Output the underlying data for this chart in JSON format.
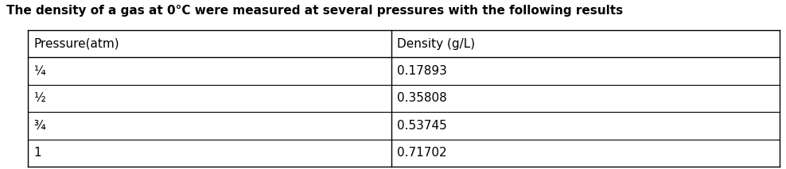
{
  "title": "The density of a gas at 0°C were measured at several pressures with the following results",
  "col1_header": "Pressure(atm)",
  "col2_header": "Density (g/L)",
  "rows": [
    [
      "¼",
      "0.17893"
    ],
    [
      "½",
      "0.35808"
    ],
    [
      "¾",
      "0.53745"
    ],
    [
      "1",
      "0.71702"
    ]
  ],
  "bg_color": "#ffffff",
  "text_color": "#000000",
  "title_fontsize": 11.0,
  "cell_fontsize": 11.0,
  "header_fontsize": 11.0,
  "fig_width": 9.88,
  "fig_height": 2.13,
  "dpi": 100
}
